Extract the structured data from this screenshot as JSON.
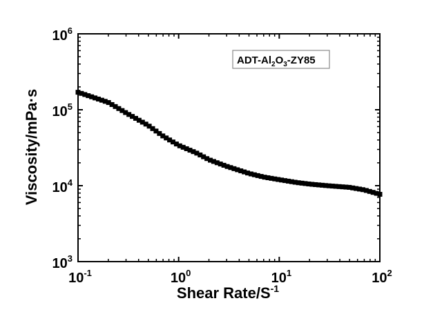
{
  "chart_data": {
    "type": "scatter",
    "x_scale": "log",
    "y_scale": "log",
    "xlabel": "Shear Rate/S",
    "xlabel_superscript": "-1",
    "ylabel": "Viscosity/mPa·s",
    "xlim": [
      0.1,
      100
    ],
    "ylim": [
      1000,
      1000000
    ],
    "x_ticks": [
      {
        "base": "10",
        "exp": "-1"
      },
      {
        "base": "10",
        "exp": "0"
      },
      {
        "base": "10",
        "exp": "1"
      },
      {
        "base": "10",
        "exp": "2"
      }
    ],
    "y_ticks": [
      {
        "base": "10",
        "exp": "3"
      },
      {
        "base": "10",
        "exp": "4"
      },
      {
        "base": "10",
        "exp": "5"
      },
      {
        "base": "10",
        "exp": "6"
      }
    ],
    "legend": {
      "position": "top-right",
      "parts": [
        {
          "text": "ADT-Al",
          "sub": false
        },
        {
          "text": "2",
          "sub": true
        },
        {
          "text": "O",
          "sub": false
        },
        {
          "text": "3",
          "sub": true
        },
        {
          "text": "-ZY85",
          "sub": false
        }
      ]
    },
    "marker": "filled-square",
    "marker_color": "#000000",
    "series": [
      {
        "name": "ADT-Al2O3-ZY85",
        "x": [
          0.1,
          0.2,
          0.3,
          0.5,
          0.7,
          1,
          1.5,
          2,
          3,
          5,
          7,
          10,
          15,
          20,
          30,
          50,
          70,
          100
        ],
        "y": [
          170000,
          125000,
          91000,
          62000,
          45000,
          34000,
          27000,
          22000,
          18000,
          14500,
          13000,
          12000,
          11000,
          10500,
          10000,
          9500,
          8800,
          7700
        ]
      }
    ]
  }
}
